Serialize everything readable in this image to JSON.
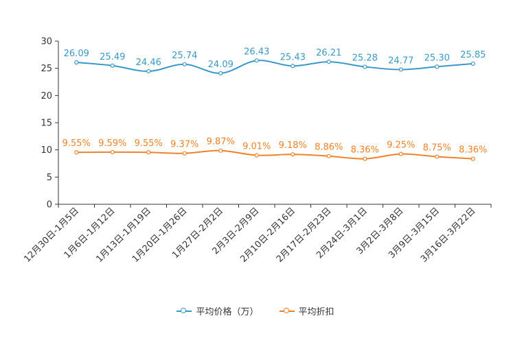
{
  "colors": {
    "price": "#3a97c9",
    "discount": "#f08128",
    "axis": "#333333"
  },
  "chart_data": {
    "type": "line",
    "categories": [
      "12月30日-1月5日",
      "1月6日-1月12日",
      "1月13日-1月19日",
      "1月20日-1月26日",
      "1月27日-2月2日",
      "2月3日-2月9日",
      "2月10日-2月16日",
      "2月17日-2月23日",
      "2月24日-3月1日",
      "3月2日-3月8日",
      "3月9日-3月15日",
      "3月16日-3月22日"
    ],
    "series": [
      {
        "name": "平均价格（万）",
        "values": [
          26.09,
          25.49,
          24.46,
          25.74,
          24.09,
          26.43,
          25.43,
          26.21,
          25.28,
          24.77,
          25.3,
          25.85
        ],
        "labels": [
          "26.09",
          "25.49",
          "24.46",
          "25.74",
          "24.09",
          "26.43",
          "25.43",
          "26.21",
          "25.28",
          "24.77",
          "25.30",
          "25.85"
        ]
      },
      {
        "name": "平均折扣",
        "values": [
          9.55,
          9.59,
          9.55,
          9.37,
          9.87,
          9.01,
          9.18,
          8.86,
          8.36,
          9.25,
          8.75,
          8.36
        ],
        "labels": [
          "9.55%",
          "9.59%",
          "9.55%",
          "9.37%",
          "9.87%",
          "9.01%",
          "9.18%",
          "8.86%",
          "8.36%",
          "9.25%",
          "8.75%",
          "8.36%"
        ]
      }
    ],
    "yticks": [
      "0",
      "5",
      "10",
      "15",
      "20",
      "25",
      "30"
    ],
    "ytick_values": [
      0,
      5,
      10,
      15,
      20,
      25,
      30
    ],
    "ylim": [
      0,
      30
    ],
    "title": "",
    "xlabel": "",
    "ylabel": "",
    "legend": "bottom-center"
  }
}
